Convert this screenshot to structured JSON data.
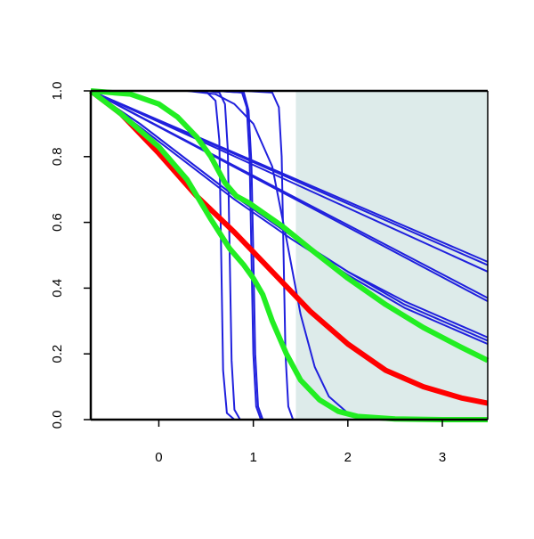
{
  "chart_data": {
    "type": "line",
    "title": "",
    "xlabel": "",
    "ylabel": "",
    "xlim": [
      -0.72,
      3.48
    ],
    "ylim": [
      0,
      1
    ],
    "xticks": [
      0,
      1,
      2,
      3
    ],
    "xtick_labels": [
      "0",
      "1",
      "2",
      "3"
    ],
    "yticks": [
      0,
      0.2,
      0.4,
      0.6,
      0.8,
      1
    ],
    "ytick_labels": [
      "0.0",
      "0.2",
      "0.4",
      "0.6",
      "0.8",
      "1.0"
    ],
    "grid": false,
    "shaded_region": {
      "x": [
        1.45,
        3.48
      ],
      "color": "#ddebea"
    },
    "colors": {
      "blue": "#2020dd",
      "red": "#ff0000",
      "green": "#22ee22",
      "axis": "#000000"
    },
    "series": [
      {
        "color": "#2020dd",
        "width": "thin",
        "x": [
          -0.72,
          3.48
        ],
        "y": [
          1.0,
          0.48
        ]
      },
      {
        "color": "#2020dd",
        "width": "thin",
        "x": [
          -0.72,
          3.48
        ],
        "y": [
          1.0,
          0.47
        ]
      },
      {
        "color": "#2020dd",
        "width": "thin",
        "x": [
          -0.72,
          3.48
        ],
        "y": [
          1.0,
          0.45
        ]
      },
      {
        "color": "#2020dd",
        "width": "thin",
        "x": [
          -0.72,
          3.48
        ],
        "y": [
          1.0,
          0.37
        ]
      },
      {
        "color": "#2020dd",
        "width": "thin",
        "x": [
          -0.72,
          3.48
        ],
        "y": [
          1.0,
          0.36
        ]
      },
      {
        "color": "#2020dd",
        "width": "thin",
        "x": [
          -0.72,
          -0.2,
          0.3,
          0.8,
          1.4,
          2.0,
          2.6,
          3.48
        ],
        "y": [
          1.0,
          0.9,
          0.79,
          0.68,
          0.56,
          0.45,
          0.36,
          0.25
        ]
      },
      {
        "color": "#2020dd",
        "width": "thin",
        "x": [
          -0.72,
          -0.2,
          0.3,
          0.8,
          1.4,
          2.0,
          2.6,
          3.48
        ],
        "y": [
          1.0,
          0.9,
          0.79,
          0.68,
          0.56,
          0.45,
          0.35,
          0.24
        ]
      },
      {
        "color": "#2020dd",
        "width": "thin",
        "x": [
          -0.72,
          -0.2,
          0.3,
          0.8,
          1.4,
          2.0,
          2.6,
          3.48
        ],
        "y": [
          1.0,
          0.89,
          0.78,
          0.67,
          0.55,
          0.44,
          0.34,
          0.23
        ]
      },
      {
        "color": "#2020dd",
        "width": "thin",
        "x": [
          -0.72,
          0.3,
          0.5,
          0.6,
          0.64,
          0.66,
          0.68,
          0.72,
          0.8,
          3.48
        ],
        "y": [
          1.0,
          1.0,
          0.998,
          0.97,
          0.85,
          0.5,
          0.15,
          0.02,
          0.0,
          0.0
        ]
      },
      {
        "color": "#2020dd",
        "width": "thin",
        "x": [
          -0.72,
          0.5,
          0.64,
          0.7,
          0.73,
          0.75,
          0.77,
          0.8,
          0.86,
          3.48
        ],
        "y": [
          1.0,
          1.0,
          0.995,
          0.96,
          0.82,
          0.5,
          0.18,
          0.03,
          0.0,
          0.0
        ]
      },
      {
        "color": "#2020dd",
        "width": "thin",
        "x": [
          -0.72,
          0.6,
          0.88,
          0.93,
          0.96,
          0.98,
          1.0,
          1.03,
          1.08,
          3.48
        ],
        "y": [
          1.0,
          1.0,
          0.995,
          0.95,
          0.8,
          0.5,
          0.2,
          0.04,
          0.0,
          0.0
        ]
      },
      {
        "color": "#2020dd",
        "width": "thin",
        "x": [
          -0.72,
          0.6,
          0.9,
          0.95,
          0.98,
          1.0,
          1.02,
          1.05,
          1.1,
          3.48
        ],
        "y": [
          1.0,
          1.0,
          0.995,
          0.94,
          0.78,
          0.5,
          0.2,
          0.04,
          0.0,
          0.0
        ]
      },
      {
        "color": "#2020dd",
        "width": "thin",
        "x": [
          -0.72,
          0.9,
          1.2,
          1.27,
          1.3,
          1.32,
          1.34,
          1.37,
          1.42,
          3.48
        ],
        "y": [
          1.0,
          1.0,
          0.995,
          0.95,
          0.8,
          0.5,
          0.2,
          0.04,
          0.0,
          0.0
        ]
      },
      {
        "color": "#2020dd",
        "width": "thin",
        "x": [
          -0.72,
          0.3,
          0.6,
          0.8,
          1.0,
          1.2,
          1.35,
          1.5,
          1.65,
          1.8,
          2.0,
          2.2,
          3.48
        ],
        "y": [
          1.0,
          1.0,
          0.99,
          0.96,
          0.9,
          0.77,
          0.55,
          0.32,
          0.16,
          0.07,
          0.02,
          0.005,
          0.0
        ]
      },
      {
        "color": "#ff0000",
        "width": "thick",
        "x": [
          -0.72,
          -0.4,
          0.0,
          0.4,
          0.8,
          1.2,
          1.6,
          2.0,
          2.4,
          2.8,
          3.2,
          3.48
        ],
        "y": [
          1.0,
          0.93,
          0.81,
          0.68,
          0.57,
          0.45,
          0.33,
          0.23,
          0.15,
          0.1,
          0.066,
          0.05
        ]
      },
      {
        "color": "#22ee22",
        "width": "thick",
        "x": [
          -0.72,
          -0.3,
          0.0,
          0.2,
          0.4,
          0.55,
          0.7,
          0.82,
          0.95,
          1.1,
          1.3,
          1.6,
          2.0,
          2.4,
          2.8,
          3.2,
          3.48
        ],
        "y": [
          1.0,
          0.99,
          0.96,
          0.92,
          0.86,
          0.8,
          0.72,
          0.68,
          0.66,
          0.63,
          0.59,
          0.52,
          0.43,
          0.35,
          0.28,
          0.22,
          0.18
        ]
      },
      {
        "color": "#22ee22",
        "width": "thick",
        "x": [
          -0.72,
          -0.4,
          0.0,
          0.3,
          0.55,
          0.75,
          0.9,
          1.0,
          1.1,
          1.2,
          1.35,
          1.5,
          1.7,
          1.9,
          2.1,
          2.5,
          3.0,
          3.48
        ],
        "y": [
          1.0,
          0.93,
          0.83,
          0.73,
          0.61,
          0.52,
          0.47,
          0.43,
          0.38,
          0.3,
          0.2,
          0.12,
          0.06,
          0.025,
          0.01,
          0.002,
          0.0,
          0.0
        ]
      }
    ]
  }
}
